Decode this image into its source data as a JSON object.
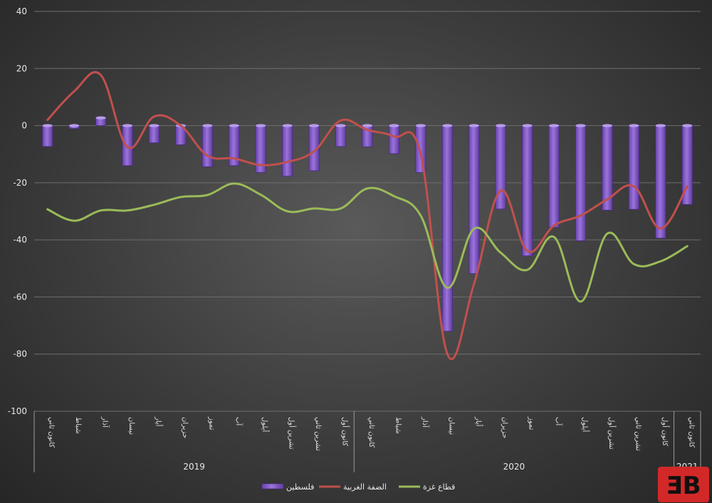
{
  "chart_data": {
    "type": "bar",
    "yticks": [
      40,
      20,
      0,
      -20,
      -40,
      -60,
      -80,
      -100
    ],
    "ylim": [
      -100,
      40
    ],
    "grid": true,
    "legend_position": "bottom",
    "categories": [
      "كانون ثاني",
      "شباط",
      "آذار",
      "نيسان",
      "أيار",
      "حزيران",
      "تموز",
      "آب",
      "أيلول",
      "تشرين أول",
      "تشرين ثاني",
      "كانون أول",
      "كانون ثاني",
      "شباط",
      "آذار",
      "نيسان",
      "أيار",
      "حزيران",
      "تموز",
      "آب",
      "أيلول",
      "تشرين أول",
      "تشرين ثاني",
      "كانون أول",
      "كانون ثاني"
    ],
    "year_groups": [
      {
        "label": "2019",
        "start": 0,
        "end": 11
      },
      {
        "label": "2020",
        "start": 12,
        "end": 23
      },
      {
        "label": "2021",
        "start": 24,
        "end": 24
      }
    ],
    "series": [
      {
        "name": "فلسطين",
        "type": "bar",
        "color": "#8a63c9",
        "values": [
          -7.3,
          -1,
          2.7,
          -14,
          -6,
          -6.7,
          -14.4,
          -14,
          -16.4,
          -17.7,
          -15.8,
          -7.3,
          -7.4,
          -9.8,
          -16.4,
          -72,
          -51.8,
          -29.2,
          -45.6,
          -35.6,
          -40.3,
          -29.6,
          -29.3,
          -39.4,
          -27.6
        ]
      },
      {
        "name": "الضفة الغربية",
        "type": "line",
        "color": "#c0504d",
        "values": [
          2,
          12,
          17.7,
          -7.5,
          3.2,
          0,
          -10.5,
          -11.5,
          -13.8,
          -12.7,
          -9,
          1.8,
          -1.5,
          -3.8,
          -10,
          -80,
          -55.4,
          -22.8,
          -43.9,
          -35,
          -31.5,
          -25.8,
          -21.3,
          -36,
          -21.2
        ]
      },
      {
        "name": "قطاع غزة",
        "type": "line",
        "color": "#9bbb59",
        "values": [
          -29.3,
          -33.3,
          -29.7,
          -29.7,
          -27.7,
          -25,
          -24.3,
          -20.3,
          -24.2,
          -30,
          -29,
          -29,
          -22,
          -24.7,
          -31.5,
          -56.8,
          -36.1,
          -44.5,
          -50.5,
          -39,
          -61.6,
          -37.8,
          -48.5,
          -47.5,
          -42.2
        ]
      }
    ]
  },
  "logo": {
    "text": "ƎB"
  }
}
